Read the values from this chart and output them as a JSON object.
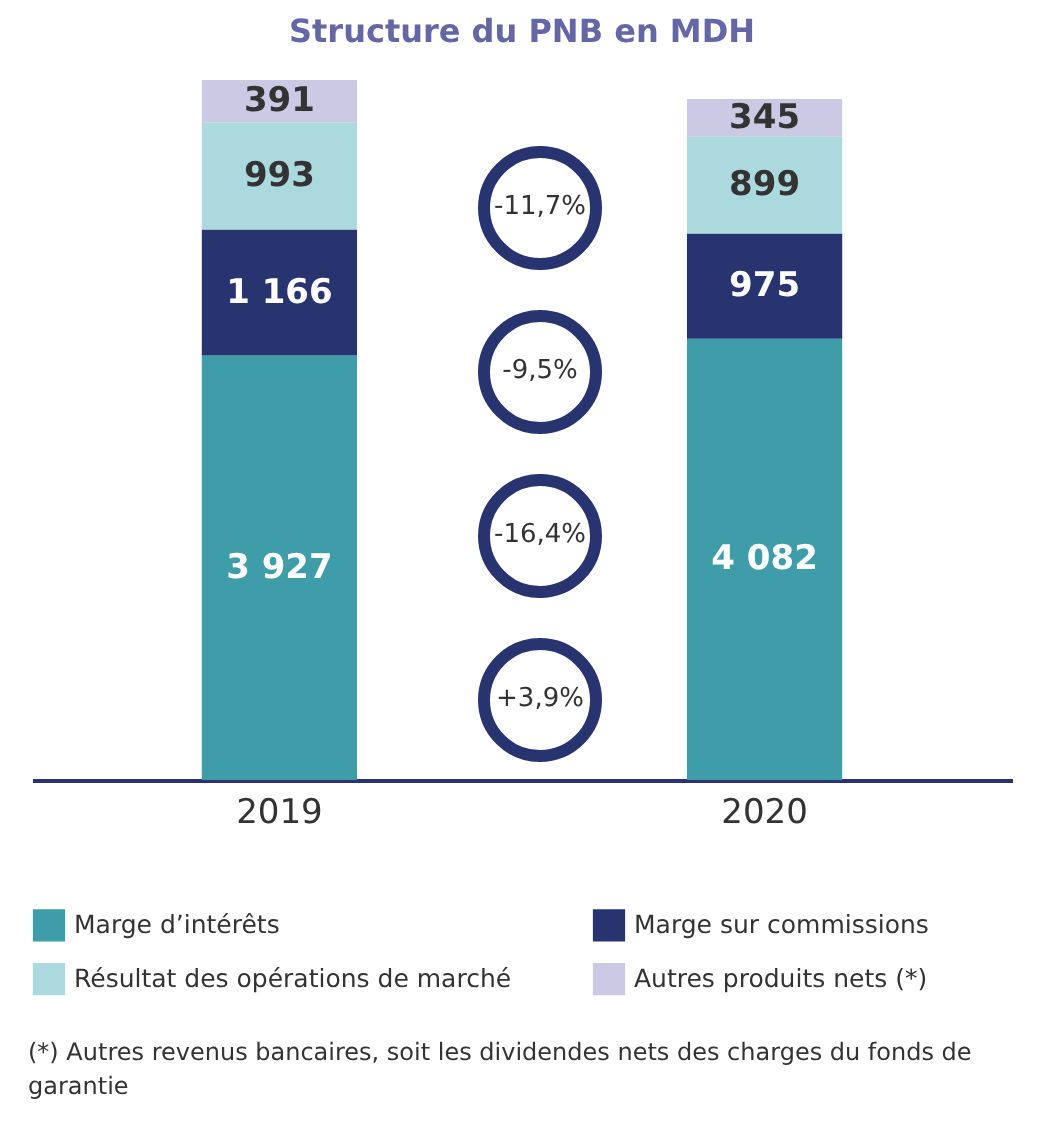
{
  "chart_data": {
    "type": "bar",
    "title": "Structure du PNB en MDH",
    "categories": [
      "2019",
      "2020"
    ],
    "stacked": true,
    "data_labels": true,
    "legend": "bottom",
    "series": [
      {
        "name": "Marge d’intérêts",
        "color": "#3f9ca9",
        "values": [
          3927,
          4082
        ],
        "value_labels": [
          "3 927",
          "4 082"
        ]
      },
      {
        "name": "Marge sur commissions",
        "color": "#283470",
        "values": [
          1166,
          975
        ],
        "value_labels": [
          "1 166",
          "975"
        ]
      },
      {
        "name": "Résultat des opérations de marché",
        "color": "#acd9dd",
        "values": [
          993,
          899
        ],
        "value_labels": [
          "993",
          "899"
        ]
      },
      {
        "name": "Autres produits nets (*)",
        "color": "#cbc9e3",
        "values": [
          391,
          345
        ],
        "value_labels": [
          "391",
          "345"
        ]
      }
    ],
    "annotations": [
      "-11,7%",
      "-9,5%",
      "-16,4%",
      "+3,9%",
      "(*) Autres revenus bancaires, soit les dividendes nets des charges du fonds de garantie"
    ]
  }
}
